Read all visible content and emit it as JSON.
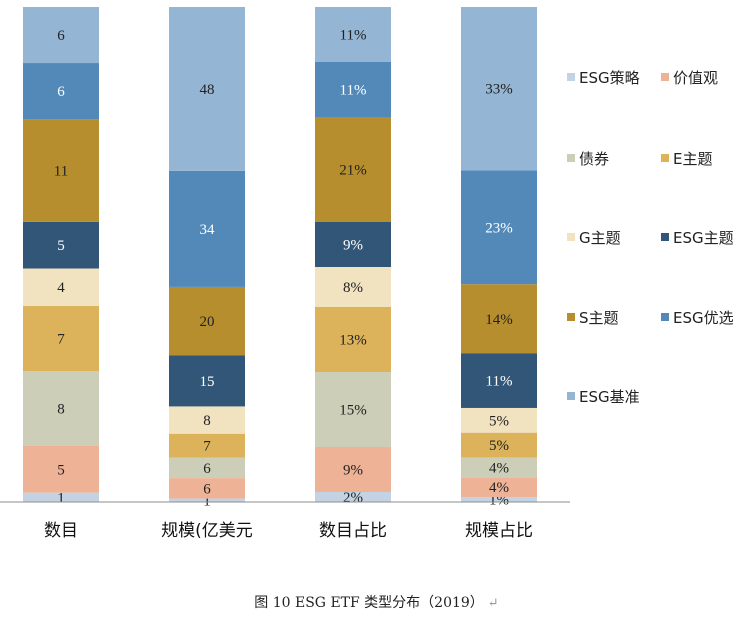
{
  "caption": "图 10 ESG ETF 类型分布（2019）",
  "caption_mark": "↵",
  "chart_data": {
    "type": "bar",
    "stacked": true,
    "legend_position": "right",
    "grid": false,
    "categories": [
      "数目",
      "规模(亿美元",
      "数目占比",
      "规模占比"
    ],
    "series": [
      {
        "name": "ESG策略",
        "color": "#c3d3e3",
        "values": [
          1,
          1,
          2,
          1
        ],
        "labels": [
          "1",
          "1",
          "2%",
          "1%"
        ]
      },
      {
        "name": "价值观",
        "color": "#eeb396",
        "values": [
          5,
          6,
          9,
          4
        ],
        "labels": [
          "5",
          "6",
          "9%",
          "4%"
        ]
      },
      {
        "name": "债券",
        "color": "#ccceb8",
        "values": [
          8,
          6,
          15,
          4
        ],
        "labels": [
          "8",
          "6",
          "15%",
          "4%"
        ]
      },
      {
        "name": "E主题",
        "color": "#dcb35b",
        "values": [
          7,
          7,
          13,
          5
        ],
        "labels": [
          "7",
          "7",
          "13%",
          "5%"
        ]
      },
      {
        "name": "G主题",
        "color": "#f1e2c0",
        "values": [
          4,
          8,
          8,
          5
        ],
        "labels": [
          "4",
          "8",
          "8%",
          "5%"
        ]
      },
      {
        "name": "ESG主题",
        "color": "#325678",
        "values": [
          5,
          15,
          9,
          11
        ],
        "labels": [
          "5",
          "15",
          "9%",
          "11%"
        ]
      },
      {
        "name": "S主题",
        "color": "#b78e2e",
        "values": [
          11,
          20,
          21,
          14
        ],
        "labels": [
          "11",
          "20",
          "21%",
          "14%"
        ]
      },
      {
        "name": "ESG优选",
        "color": "#5389b9",
        "values": [
          6,
          34,
          11,
          23
        ],
        "labels": [
          "6",
          "34",
          "11%",
          "23%"
        ]
      },
      {
        "name": "ESG基准",
        "color": "#94b5d4",
        "values": [
          6,
          48,
          11,
          33
        ],
        "labels": [
          "6",
          "48",
          "11%",
          "33%"
        ]
      }
    ],
    "legend_order": [
      "ESG策略",
      "价值观",
      "债券",
      "E主题",
      "G主题",
      "ESG主题",
      "S主题",
      "ESG优选",
      "ESG基准"
    ]
  }
}
